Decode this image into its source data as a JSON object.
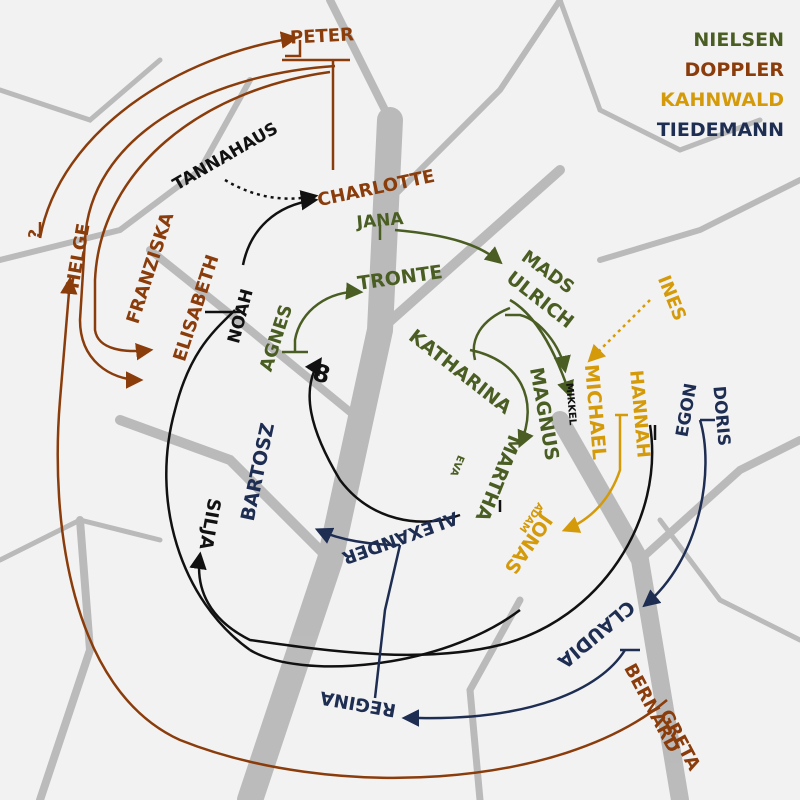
{
  "colors": {
    "nielsen": "#4a5e23",
    "doppler": "#8a3c0b",
    "kahnwald": "#d49a0a",
    "tiedemann": "#1e2d52",
    "black": "#111111",
    "tree": "#9b9b9b"
  },
  "legend": {
    "nielsen": "NIELSEN",
    "doppler": "DOPPLER",
    "kahnwald": "KAHNWALD",
    "tiedemann": "TIEDEMANN"
  },
  "people": {
    "peter": "PETER",
    "charlotte": "CHARLOTTE",
    "tannahaus": "TANNAHAUS",
    "unknown": "?",
    "helge": "HELGE",
    "franziska": "FRANZISKA",
    "elisabeth": "ELISABETH",
    "noah": "NOAH",
    "agnes": "AGNES",
    "eight": "8",
    "jana": "JANA",
    "tronte": "TRONTE",
    "mads": "MADS",
    "ulrich": "ULRICH",
    "katharina": "KATHARINA",
    "magnus": "MAGNUS",
    "martha": "MARTHA",
    "eva": "EVA",
    "mikkel": "MIKKEL",
    "michael": "MICHAEL",
    "ines": "INES",
    "hannah": "HANNAH",
    "egon": "EGON",
    "doris": "DORIS",
    "jonas": "JONAS",
    "adam": "ADAM",
    "bartosz": "BARTOSZ",
    "silja": "SILJA",
    "alexander": "ALEXANDER",
    "claudia": "CLAUDIA",
    "bernard": "BERNARD",
    "greta": "GRETA",
    "regina": "REGINA"
  }
}
